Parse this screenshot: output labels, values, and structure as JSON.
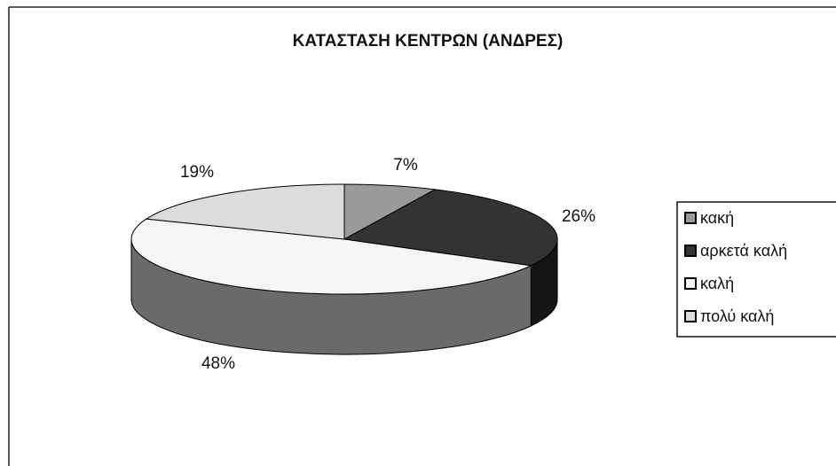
{
  "chart_data": {
    "type": "pie",
    "title": "ΚΑΤΑΣΤΑΣΗ ΚΕΝΤΡΩΝ (ΑΝΔΡΕΣ)",
    "categories": [
      "κακή",
      "αρκετά καλή",
      "καλή",
      "πολύ καλή"
    ],
    "values": [
      7,
      26,
      48,
      19
    ],
    "value_labels": [
      "7%",
      "26%",
      "48%",
      "19%"
    ],
    "colors": [
      "#9a9a9a",
      "#333333",
      "#f5f5f5",
      "#dcdcdc"
    ],
    "legend": "right"
  }
}
